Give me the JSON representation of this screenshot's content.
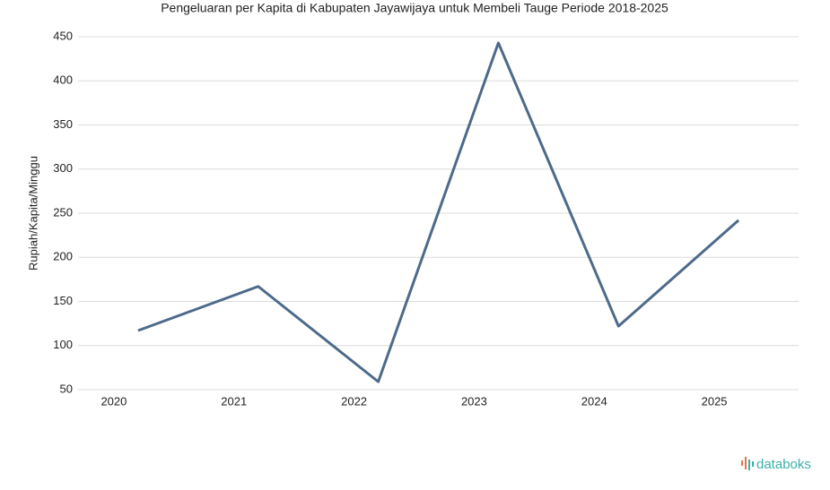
{
  "chart_data": {
    "type": "line",
    "title": "Pengeluaran per Kapita di Kabupaten Jayawijaya untuk Membeli Tauge Periode 2018-2025",
    "y_label": "Rupiah/Kapita/Minggu",
    "categories": [
      "2020",
      "2021",
      "2022",
      "2023",
      "2024",
      "2025"
    ],
    "series": [
      {
        "name": "Pengeluaran",
        "color": "#4d6a8a",
        "values": [
          117,
          167,
          59,
          443,
          122,
          242
        ]
      }
    ],
    "ylim": [
      50,
      450
    ],
    "yticks": [
      50,
      100,
      150,
      200,
      250,
      300,
      350,
      400,
      450
    ],
    "grid": true,
    "watermark": "databoks"
  }
}
